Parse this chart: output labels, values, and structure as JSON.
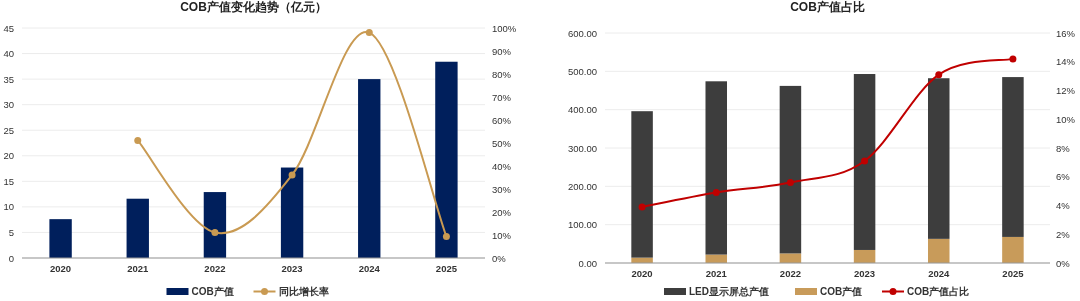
{
  "chart_data": [
    {
      "type": "bar",
      "title": "COB产值变化趋势（亿元）",
      "categories": [
        "2020",
        "2021",
        "2022",
        "2023",
        "2024",
        "2025"
      ],
      "series": [
        {
          "name": "COB产值",
          "color": "#001f5c",
          "values": [
            7.6,
            11.6,
            12.9,
            17.7,
            35.0,
            38.4
          ]
        },
        {
          "name": "同比增长率",
          "type": "line",
          "axis": "y2",
          "marker": "circle",
          "color": "#c99a52",
          "values": [
            null,
            51.1,
            11.1,
            36.1,
            98.0,
            9.3
          ]
        }
      ],
      "ylim": [
        0,
        45
      ],
      "yticks": [
        0,
        5,
        10,
        15,
        20,
        25,
        30,
        35,
        40,
        45
      ],
      "y2lim": [
        0,
        100
      ],
      "y2ticks": [
        {
          "value": 0,
          "label": "0%"
        },
        {
          "value": 10,
          "label": "10%"
        },
        {
          "value": 20,
          "label": "20%"
        },
        {
          "value": 30,
          "label": "30%"
        },
        {
          "value": 40,
          "label": "40%"
        },
        {
          "value": 50,
          "label": "50%"
        },
        {
          "value": 60,
          "label": "60%"
        },
        {
          "value": 70,
          "label": "70%"
        },
        {
          "value": 80,
          "label": "80%"
        },
        {
          "value": 90,
          "label": "90%"
        },
        {
          "value": 100,
          "label": "100%"
        }
      ],
      "grid": "y",
      "legend": "bottom"
    },
    {
      "type": "bar",
      "title": "COB产值占比",
      "categories": [
        "2020",
        "2021",
        "2022",
        "2023",
        "2024",
        "2025"
      ],
      "stacked": true,
      "series": [
        {
          "name": "COB产值",
          "color": "#c89b5a",
          "values": [
            14,
            22,
            25,
            34,
            63,
            68
          ]
        },
        {
          "name": "LED显示屏总产值",
          "color": "#3d3d3d",
          "values": [
            382,
            452,
            437,
            459,
            419,
            417
          ]
        },
        {
          "name": "COB产值占比",
          "type": "line",
          "axis": "y2",
          "marker": "circle",
          "color": "#c00000",
          "values": [
            3.9,
            4.9,
            5.6,
            7.1,
            13.1,
            14.2
          ]
        }
      ],
      "ylim": [
        0,
        600
      ],
      "yticks": [
        {
          "value": 0,
          "label": "0.00"
        },
        {
          "value": 100,
          "label": "100.00"
        },
        {
          "value": 200,
          "label": "200.00"
        },
        {
          "value": 300,
          "label": "300.00"
        },
        {
          "value": 400,
          "label": "400.00"
        },
        {
          "value": 500,
          "label": "500.00"
        },
        {
          "value": 600,
          "label": "600.00"
        }
      ],
      "y2lim": [
        0,
        16
      ],
      "y2ticks": [
        {
          "value": 0,
          "label": "0%"
        },
        {
          "value": 2,
          "label": "2%"
        },
        {
          "value": 4,
          "label": "4%"
        },
        {
          "value": 6,
          "label": "6%"
        },
        {
          "value": 8,
          "label": "8%"
        },
        {
          "value": 10,
          "label": "10%"
        },
        {
          "value": 12,
          "label": "12%"
        },
        {
          "value": 14,
          "label": "14%"
        },
        {
          "value": 16,
          "label": "16%"
        }
      ],
      "grid": "y",
      "legend": "bottom"
    }
  ]
}
